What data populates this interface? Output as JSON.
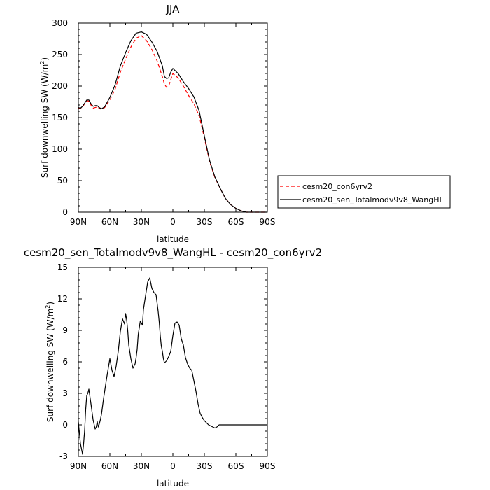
{
  "chart_data": [
    {
      "type": "line",
      "title": "JJA",
      "xlabel": "latitude",
      "ylabel": "Surf downwelling SW (W/m",
      "ylabel_sup": "2",
      "ylabel_end": ")",
      "xlim": [
        90,
        -90
      ],
      "ylim": [
        0,
        300
      ],
      "xticks": [
        90,
        60,
        30,
        0,
        -30,
        -60,
        -90
      ],
      "xticklabels": [
        "90N",
        "60N",
        "30N",
        "0",
        "30S",
        "60S",
        "90S"
      ],
      "yticks": [
        0,
        50,
        100,
        150,
        200,
        250,
        300
      ],
      "yticklabels": [
        "0",
        "50",
        "100",
        "150",
        "200",
        "250",
        "300"
      ],
      "legend_position": "right",
      "series": [
        {
          "name": "cesm20_con6yrv2",
          "color": "#ff0000",
          "dash": true,
          "x": [
            90,
            88,
            86,
            84,
            82,
            80,
            78,
            76,
            74,
            72,
            70,
            68,
            65,
            60,
            55,
            50,
            45,
            40,
            35,
            30,
            25,
            20,
            15,
            10,
            8,
            6,
            4,
            2,
            0,
            -5,
            -10,
            -15,
            -20,
            -25,
            -30,
            -35,
            -40,
            -45,
            -50,
            -55,
            -60,
            -65,
            -70,
            -75,
            -80,
            -85,
            -90
          ],
          "y": [
            165,
            165,
            167,
            172,
            177,
            176,
            170,
            165,
            166,
            167,
            165,
            163,
            166,
            178,
            195,
            222,
            243,
            262,
            276,
            280,
            272,
            258,
            240,
            215,
            203,
            198,
            200,
            210,
            220,
            213,
            200,
            185,
            172,
            153,
            118,
            80,
            55,
            38,
            22,
            12,
            6,
            2,
            0,
            0,
            0,
            0,
            0
          ]
        },
        {
          "name": "cesm20_sen_Totalmodv9v8_WangHL",
          "color": "#000000",
          "dash": false,
          "x": [
            90,
            88,
            86,
            84,
            82,
            80,
            78,
            76,
            74,
            72,
            70,
            68,
            65,
            60,
            55,
            50,
            45,
            40,
            35,
            30,
            25,
            20,
            15,
            10,
            8,
            6,
            4,
            2,
            0,
            -5,
            -10,
            -15,
            -20,
            -25,
            -30,
            -35,
            -40,
            -45,
            -50,
            -55,
            -60,
            -65,
            -70,
            -75,
            -80,
            -85,
            -90
          ],
          "y": [
            166,
            165,
            168,
            173,
            178,
            178,
            172,
            168,
            169,
            169,
            166,
            164,
            167,
            182,
            202,
            232,
            253,
            272,
            284,
            286,
            282,
            270,
            255,
            232,
            215,
            212,
            213,
            222,
            228,
            220,
            207,
            196,
            183,
            161,
            121,
            82,
            56,
            38,
            22,
            12,
            6,
            2,
            0,
            0,
            0,
            0,
            0
          ]
        }
      ]
    },
    {
      "type": "line",
      "title": "cesm20_sen_Totalmodv9v8_WangHL - cesm20_con6yrv2",
      "xlabel": "latitude",
      "ylabel": "Surf downwelling SW (W/m",
      "ylabel_sup": "2",
      "ylabel_end": ")",
      "xlim": [
        90,
        -90
      ],
      "ylim": [
        -3,
        15
      ],
      "xticks": [
        90,
        60,
        30,
        0,
        -30,
        -60,
        -90
      ],
      "xticklabels": [
        "90N",
        "60N",
        "30N",
        "0",
        "30S",
        "60S",
        "90S"
      ],
      "yticks": [
        -3,
        0,
        3,
        6,
        9,
        12,
        15
      ],
      "yticklabels": [
        "-3",
        "0",
        "3",
        "6",
        "9",
        "12",
        "15"
      ],
      "series": [
        {
          "color": "#000000",
          "dash": false,
          "x": [
            90,
            89,
            88,
            87,
            86,
            85,
            84,
            83,
            82,
            81,
            80,
            78,
            76,
            74,
            73,
            72,
            71,
            70,
            69,
            68,
            66,
            63,
            60,
            58,
            56,
            54,
            52,
            50,
            48,
            46,
            45,
            44,
            43,
            42,
            40,
            38,
            36,
            35,
            34,
            33,
            31,
            29,
            28,
            26,
            24,
            22,
            20,
            18,
            16,
            14,
            13,
            12,
            11,
            10,
            9,
            8,
            6,
            4,
            2,
            0,
            -2,
            -4,
            -6,
            -8,
            -10,
            -12,
            -14,
            -16,
            -18,
            -20,
            -22,
            -24,
            -26,
            -28,
            -30,
            -32,
            -34,
            -36,
            -38,
            -40,
            -42,
            -44,
            -46,
            -48,
            -50,
            -52,
            -54,
            -56,
            -58,
            -60,
            -62,
            -64,
            -66,
            -68,
            -70,
            -72,
            -75,
            -80,
            -85,
            -90
          ],
          "y": [
            0.3,
            -0.8,
            -1.8,
            -2.3,
            -2.8,
            -1.8,
            -0.5,
            1.5,
            2.8,
            3.0,
            3.4,
            2.0,
            0.5,
            -0.4,
            -0.2,
            0.3,
            -0.2,
            0.1,
            0.5,
            1.0,
            2.5,
            4.5,
            6.3,
            5.2,
            4.6,
            5.6,
            7.0,
            8.9,
            10.1,
            9.6,
            10.6,
            10.0,
            9.0,
            7.6,
            6.3,
            5.4,
            5.8,
            6.4,
            7.2,
            8.6,
            9.9,
            9.5,
            11.0,
            12.3,
            13.6,
            14.0,
            13.0,
            12.6,
            12.4,
            10.8,
            9.8,
            8.5,
            7.5,
            7.0,
            6.3,
            5.9,
            6.1,
            6.5,
            7.0,
            8.5,
            9.7,
            9.8,
            9.5,
            8.2,
            7.6,
            6.4,
            5.8,
            5.4,
            5.2,
            4.2,
            3.2,
            2.0,
            1.1,
            0.7,
            0.4,
            0.2,
            0.0,
            -0.1,
            -0.2,
            -0.3,
            -0.2,
            0.0,
            0.0,
            0.0,
            0.0,
            0.0,
            0.0,
            0.0,
            0.0,
            0.0,
            0.0,
            0.0,
            0.0,
            0.0,
            0.0,
            0.0,
            0.0,
            0.0,
            0.0,
            0.0
          ]
        }
      ]
    }
  ]
}
